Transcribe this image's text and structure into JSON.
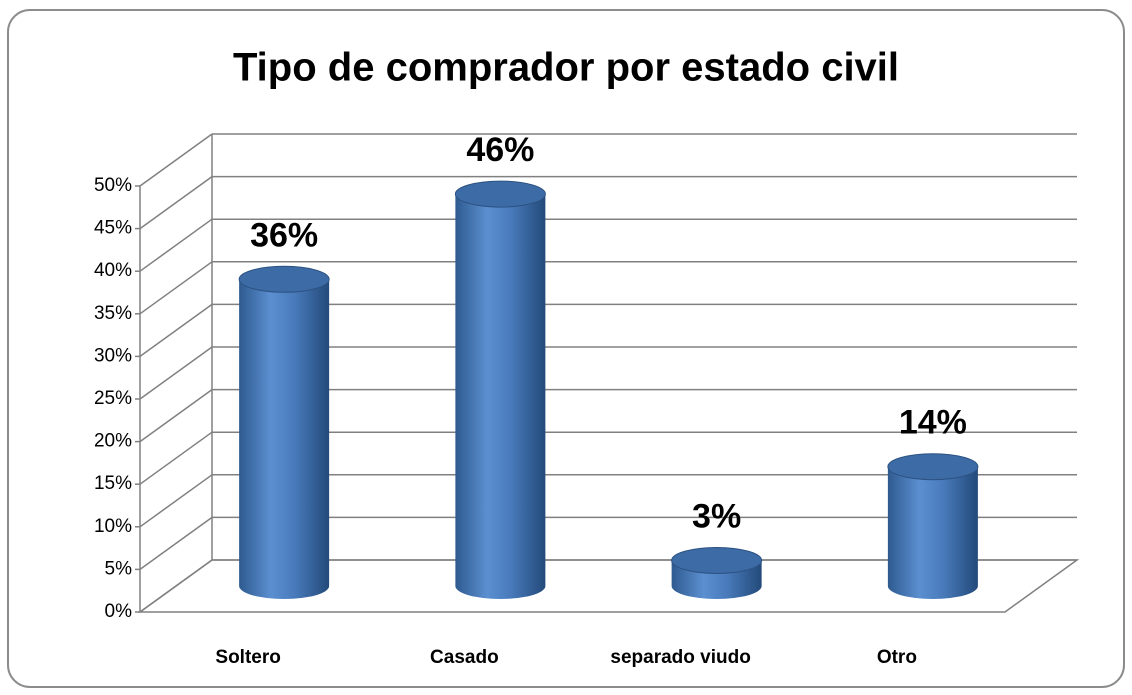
{
  "chart_data": {
    "type": "bar",
    "title": "Tipo de comprador por estado civil",
    "categories": [
      "Soltero",
      "Casado",
      "separado viudo",
      "Otro"
    ],
    "values": [
      36,
      46,
      3,
      14
    ],
    "value_labels": [
      "36%",
      "46%",
      "3%",
      "14%"
    ],
    "color": "#4f81bd",
    "ylim": [
      0,
      50
    ],
    "yticks": [
      {
        "value": 0,
        "label": "0%"
      },
      {
        "value": 5,
        "label": "5%"
      },
      {
        "value": 10,
        "label": "10%"
      },
      {
        "value": 15,
        "label": "15%"
      },
      {
        "value": 20,
        "label": "20%"
      },
      {
        "value": 25,
        "label": "25%"
      },
      {
        "value": 30,
        "label": "30%"
      },
      {
        "value": 35,
        "label": "35%"
      },
      {
        "value": 40,
        "label": "40%"
      },
      {
        "value": 45,
        "label": "45%"
      },
      {
        "value": 50,
        "label": "50%"
      }
    ],
    "grid": true
  }
}
